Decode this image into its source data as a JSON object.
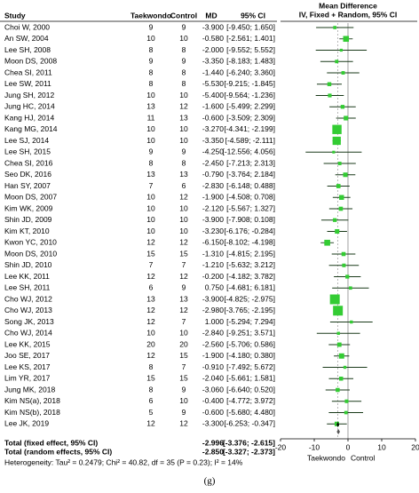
{
  "chart_data": {
    "type": "forest",
    "title": "Mean Difference",
    "subtitle": "IV, Fixed + Random, 95% CI",
    "columns": {
      "study": "Study",
      "treatment": "Taekwondo",
      "control": "Control",
      "md": "MD",
      "ci": "95% CI"
    },
    "studies": [
      "Choi W, 2000",
      "An SW, 2004",
      "Lee SH, 2008",
      "Moon DS, 2008",
      "Chea SI, 2011",
      "Lee SW, 2011",
      "Jung SH, 2012",
      "Jung HC, 2014",
      "Kang HJ, 2014",
      "Kang MG, 2014",
      "Lee SJ, 2014",
      "Lee SH, 2015",
      "Chea SI, 2016",
      "Seo DK, 2016",
      "Han SY, 2007",
      "Moon DS, 2007",
      "Kim WK, 2009",
      "Shin JD, 2009",
      "Kim KT, 2010",
      "Kwon YC, 2010",
      "Moon DS, 2010",
      "Shin JD, 2010",
      "Lee KK, 2011",
      "Lee SH, 2011",
      "Cho WJ, 2012",
      "Cho WJ, 2013",
      "Song JK, 2013",
      "Cho WJ, 2014",
      "Lee KK, 2015",
      "Joo SE, 2017",
      "Lee KS, 2017",
      "Lim YR, 2017",
      "Jung MK, 2018",
      "Kim NS(a), 2018",
      "Kim NS(b), 2018",
      "Lee JK, 2019"
    ],
    "treatment_n": [
      9,
      10,
      8,
      9,
      8,
      8,
      10,
      13,
      11,
      10,
      10,
      9,
      8,
      13,
      7,
      10,
      10,
      10,
      10,
      12,
      15,
      7,
      12,
      6,
      13,
      12,
      12,
      10,
      20,
      12,
      8,
      15,
      8,
      6,
      5,
      12
    ],
    "control_n": [
      9,
      10,
      8,
      9,
      8,
      8,
      10,
      12,
      13,
      10,
      10,
      9,
      8,
      13,
      6,
      12,
      10,
      10,
      10,
      12,
      15,
      7,
      12,
      9,
      13,
      12,
      7,
      10,
      20,
      15,
      7,
      15,
      9,
      10,
      9,
      12
    ],
    "values": [
      -3.9,
      -0.58,
      -2.0,
      -3.35,
      -1.44,
      -5.53,
      -5.4,
      -1.6,
      -0.6,
      -3.27,
      -3.35,
      -4.25,
      -2.45,
      -0.79,
      -2.83,
      -1.9,
      -2.12,
      -3.9,
      -3.23,
      -6.15,
      -1.31,
      -1.21,
      -0.2,
      0.75,
      -3.9,
      -2.98,
      1.0,
      -2.84,
      -2.56,
      -1.9,
      -0.91,
      -2.04,
      -3.06,
      -0.4,
      -0.6,
      -3.3
    ],
    "value_labels": [
      "-3.900",
      "-0.580",
      "-2.000",
      "-3.350",
      "-1.440",
      "-5.530",
      "-5.400",
      "-1.600",
      "-0.600",
      "-3.270",
      "-3.350",
      "-4.250",
      "-2.450",
      "-0.790",
      "-2.830",
      "-1.900",
      "-2.120",
      "-3.900",
      "-3.230",
      "-6.150",
      "-1.310",
      "-1.210",
      "-0.200",
      "0.750",
      "-3.900",
      "-2.980",
      "1.000",
      "-2.840",
      "-2.560",
      "-1.900",
      "-0.910",
      "-2.040",
      "-3.060",
      "-0.400",
      "-0.600",
      "-3.300"
    ],
    "lower": [
      -9.45,
      -2.561,
      -9.552,
      -8.183,
      -6.24,
      -9.215,
      -9.564,
      -5.499,
      -3.509,
      -4.341,
      -4.589,
      -12.556,
      -7.213,
      -3.764,
      -6.148,
      -4.508,
      -5.567,
      -7.908,
      -6.176,
      -8.102,
      -4.815,
      -5.632,
      -4.182,
      -4.681,
      -4.825,
      -3.765,
      -5.294,
      -9.251,
      -5.706,
      -4.18,
      -7.492,
      -5.661,
      -6.64,
      -4.772,
      -5.68,
      -6.253
    ],
    "upper": [
      1.65,
      1.401,
      5.552,
      1.483,
      3.36,
      -1.845,
      -1.236,
      2.299,
      2.309,
      -2.199,
      -2.111,
      4.056,
      2.313,
      2.184,
      0.488,
      0.708,
      1.327,
      0.108,
      -0.284,
      -4.198,
      2.195,
      3.212,
      3.782,
      6.181,
      -2.975,
      -2.195,
      7.294,
      3.571,
      0.586,
      0.38,
      5.672,
      1.581,
      0.52,
      3.972,
      4.48,
      -0.347
    ],
    "ci_labels": [
      "[-9.450; 1.650]",
      "[-2.561; 1.401]",
      "[-9.552; 5.552]",
      "[-8.183; 1.483]",
      "[-6.240; 3.360]",
      "[-9.215; -1.845]",
      "[-9.564; -1.236]",
      "[-5.499; 2.299]",
      "[-3.509; 2.309]",
      "[-4.341; -2.199]",
      "[-4.589; -2.111]",
      "[-12.556; 4.056]",
      "[-7.213; 2.313]",
      "[-3.764; 2.184]",
      "[-6.148; 0.488]",
      "[-4.508; 0.708]",
      "[-5.567; 1.327]",
      "[-7.908; 0.108]",
      "[-6.176; -0.284]",
      "[-8.102; -4.198]",
      "[-4.815; 2.195]",
      "[-5.632; 3.212]",
      "[-4.182; 3.782]",
      "[-4.681; 6.181]",
      "[-4.825; -2.975]",
      "[-3.765; -2.195]",
      "[-5.294; 7.294]",
      "[-9.251; 3.571]",
      "[-5.706; 0.586]",
      "[-4.180; 0.380]",
      "[-7.492; 5.672]",
      "[-5.661; 1.581]",
      "[-6.640; 0.520]",
      "[-4.772; 3.972]",
      "[-5.680; 4.480]",
      "[-6.253; -0.347]"
    ],
    "totals": {
      "labels": [
        "Total (fixed effect, 95% CI)",
        "Total (random effects, 95% CI)"
      ],
      "values": [
        -2.996,
        -2.85
      ],
      "value_labels": [
        "-2.996",
        "-2.850"
      ],
      "lower": [
        -3.376,
        -3.327
      ],
      "upper": [
        -2.615,
        -2.373
      ],
      "ci_labels": [
        "[-3.376; -2.615]",
        "[-3.327; -2.373]"
      ]
    },
    "heterogeneity": "Heterogeneity: Tau² = 0.2479; Chi² = 40.82, df = 35 (P = 0.23); I² = 14%",
    "xlim": [
      -20,
      20
    ],
    "xticks": [
      -20,
      -10,
      0,
      10,
      20
    ],
    "x_left_label": "Taekwondo",
    "x_right_label": "Control",
    "color": "#33cc33",
    "caption": "(g)"
  }
}
